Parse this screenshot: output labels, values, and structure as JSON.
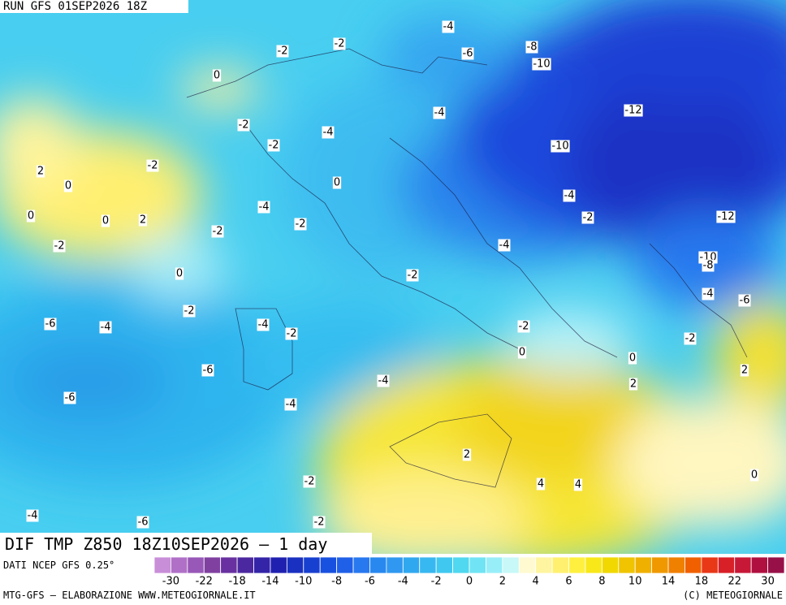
{
  "header": {
    "run": "RUN GFS 01SEP2026 18Z"
  },
  "title": "DIF TMP Z850 18Z10SEP2026 — 1 day",
  "source": "DATI NCEP GFS 0.25°",
  "footer": {
    "left": "MTG-GFS — ELABORAZIONE WWW.METEOGIORNALE.IT",
    "right": "(C) METEOGIORNALE"
  },
  "contour_labels": [
    -4,
    -2,
    -2,
    -6,
    -8,
    -10,
    0,
    -12,
    -4,
    -2,
    -4,
    -2,
    -10,
    2,
    -2,
    0,
    0,
    -4,
    -4,
    0,
    0,
    2,
    -2,
    -2,
    -12,
    -2,
    -2,
    -4,
    -10,
    -8,
    0,
    -2,
    -4,
    -6,
    -2,
    -6,
    -4,
    -4,
    -2,
    -2,
    -2,
    0,
    0,
    -6,
    2,
    -4,
    2,
    -6,
    -4,
    2,
    0,
    -2,
    4,
    4,
    -4,
    -6,
    -2
  ],
  "colorbar": {
    "ticks": [
      -30,
      -22,
      -18,
      -14,
      -10,
      -8,
      -6,
      -4,
      -2,
      0,
      2,
      4,
      6,
      8,
      10,
      14,
      18,
      22,
      30
    ],
    "colors": [
      "#c88ed8",
      "#b070c8",
      "#9858b8",
      "#8040a0",
      "#6830a0",
      "#4c28a0",
      "#3424a8",
      "#2020b0",
      "#1a30c0",
      "#1840d0",
      "#1850e0",
      "#2060e8",
      "#2878f0",
      "#2888f0",
      "#3098f0",
      "#30a8f0",
      "#38b8f0",
      "#40c8f0",
      "#50d8f0",
      "#70e4f4",
      "#98eef8",
      "#c8f8f8",
      "#fffad0",
      "#fff4a0",
      "#fff070",
      "#fff040",
      "#f8e81a",
      "#f0d800",
      "#f0c400",
      "#f0b000",
      "#f09800",
      "#f08000",
      "#f06000",
      "#e83818",
      "#d82028",
      "#c81838",
      "#b01040",
      "#981048"
    ]
  }
}
